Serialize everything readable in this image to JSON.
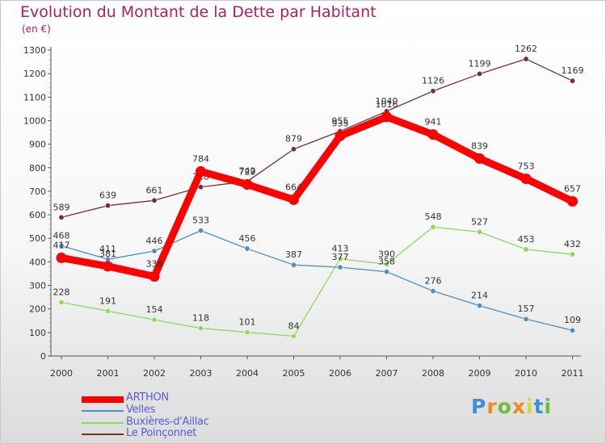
{
  "header": {
    "title": "Evolution du Montant de la Dette par Habitant",
    "subtitle": "(en €)"
  },
  "logo": {
    "letters": [
      "P",
      "r",
      "o",
      "x",
      "i",
      "t",
      "i"
    ],
    "colors": [
      "#3a8fd8",
      "#f08a1c",
      "#6cbf3b",
      "#f08a1c",
      "#d8d83a",
      "#3a8fd8",
      "#6cbf3b"
    ]
  },
  "chart_data": {
    "type": "line",
    "x": [
      "2000",
      "2001",
      "2002",
      "2003",
      "2004",
      "2005",
      "2006",
      "2007",
      "2008",
      "2009",
      "2010",
      "2011"
    ],
    "ylim": [
      0,
      1300
    ],
    "yticks": [
      0,
      100,
      200,
      300,
      400,
      500,
      600,
      700,
      800,
      900,
      1000,
      1100,
      1200,
      1300
    ],
    "grid": false,
    "legend_position": "bottom-left",
    "series": [
      {
        "name": "ARTHON",
        "color": "#ff0000",
        "values": [
          417,
          381,
          338,
          784,
          729,
          664,
          935,
          1016,
          941,
          839,
          753,
          657
        ]
      },
      {
        "name": "Velles",
        "color": "#4a90c8",
        "values": [
          468,
          411,
          446,
          533,
          456,
          387,
          377,
          358,
          276,
          214,
          157,
          109
        ]
      },
      {
        "name": "Buxières-d'Aillac",
        "color": "#8ed860",
        "values": [
          228,
          191,
          154,
          118,
          101,
          84,
          413,
          390,
          548,
          527,
          453,
          432
        ]
      },
      {
        "name": "Le Poinçonnet",
        "color": "#7a2f2f",
        "values": [
          589,
          639,
          661,
          718,
          742,
          879,
          955,
          1040,
          1126,
          1199,
          1262,
          1169
        ]
      }
    ]
  }
}
